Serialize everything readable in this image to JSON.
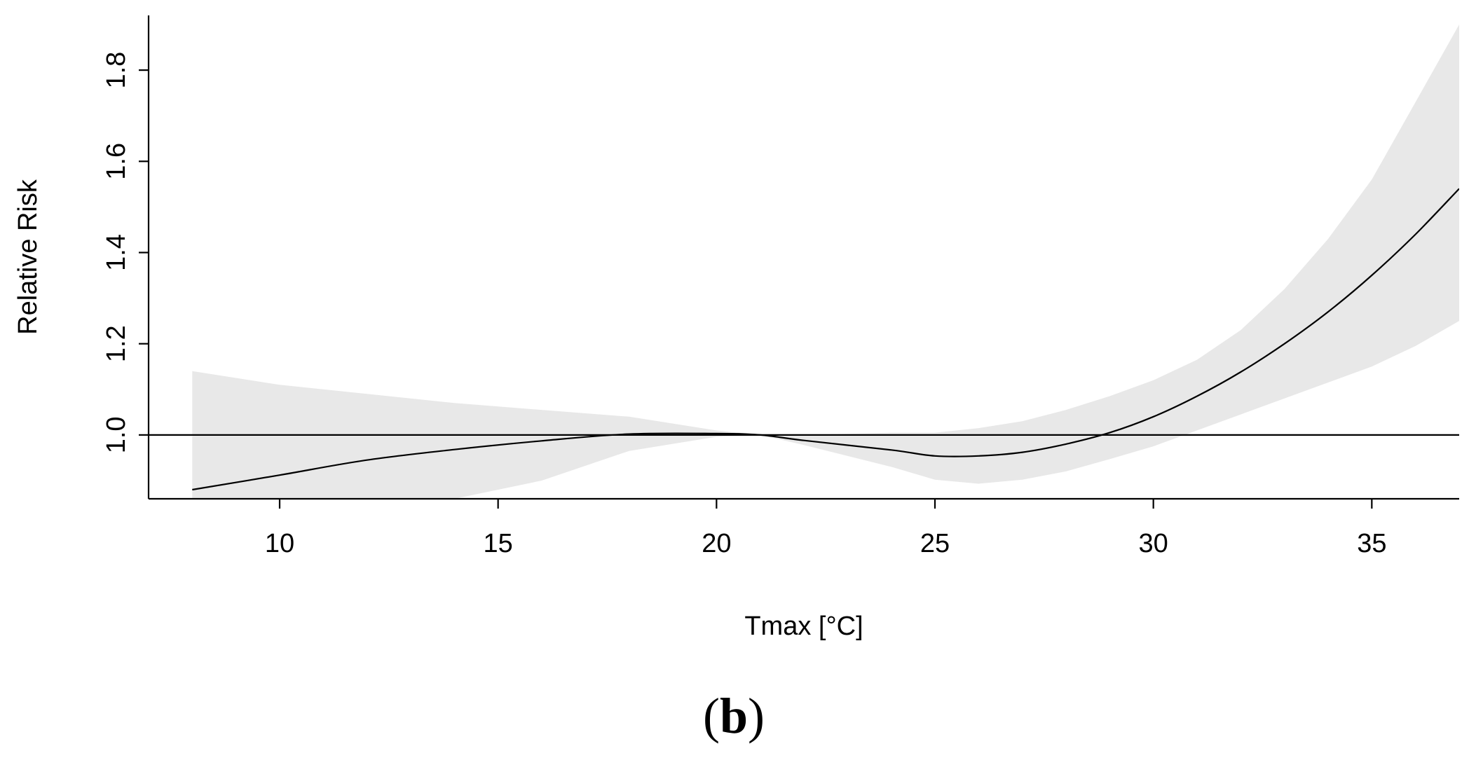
{
  "chart_data": {
    "type": "line",
    "xlabel": "Tmax [°C]",
    "ylabel": "Relative Risk",
    "panel_label": "b",
    "xlim": [
      7.0,
      37.0
    ],
    "ylim": [
      0.86,
      1.92
    ],
    "x_ticks": [
      10,
      15,
      20,
      25,
      30,
      35
    ],
    "x_tick_labels": [
      "10",
      "15",
      "20",
      "25",
      "30",
      "35"
    ],
    "y_ticks": [
      1.0,
      1.2,
      1.4,
      1.6,
      1.8
    ],
    "y_tick_labels": [
      "1.0",
      "1.2",
      "1.4",
      "1.6",
      "1.8"
    ],
    "reference_line": 1.0,
    "band_color": "#e8e8e8",
    "line_color": "#000000",
    "series": [
      {
        "x": [
          8,
          10,
          12,
          14,
          16,
          18,
          20,
          21,
          22,
          24,
          25,
          26,
          27,
          28,
          29,
          30,
          31,
          32,
          33,
          34,
          35,
          36,
          37
        ],
        "y": [
          0.88,
          0.912,
          0.945,
          0.968,
          0.987,
          1.002,
          1.003,
          1.0,
          0.988,
          0.967,
          0.954,
          0.954,
          0.962,
          0.98,
          1.005,
          1.04,
          1.085,
          1.138,
          1.2,
          1.27,
          1.35,
          1.44,
          1.54
        ],
        "lower": [
          0.86,
          0.86,
          0.86,
          0.86,
          0.9,
          0.965,
          0.996,
          1.0,
          0.978,
          0.93,
          0.902,
          0.893,
          0.902,
          0.92,
          0.947,
          0.975,
          1.01,
          1.045,
          1.08,
          1.115,
          1.15,
          1.195,
          1.25
        ],
        "upper": [
          1.14,
          1.11,
          1.09,
          1.07,
          1.055,
          1.04,
          1.01,
          1.0,
          1.0,
          1.005,
          1.005,
          1.015,
          1.03,
          1.055,
          1.085,
          1.12,
          1.165,
          1.23,
          1.32,
          1.43,
          1.56,
          1.73,
          1.9
        ]
      }
    ]
  }
}
